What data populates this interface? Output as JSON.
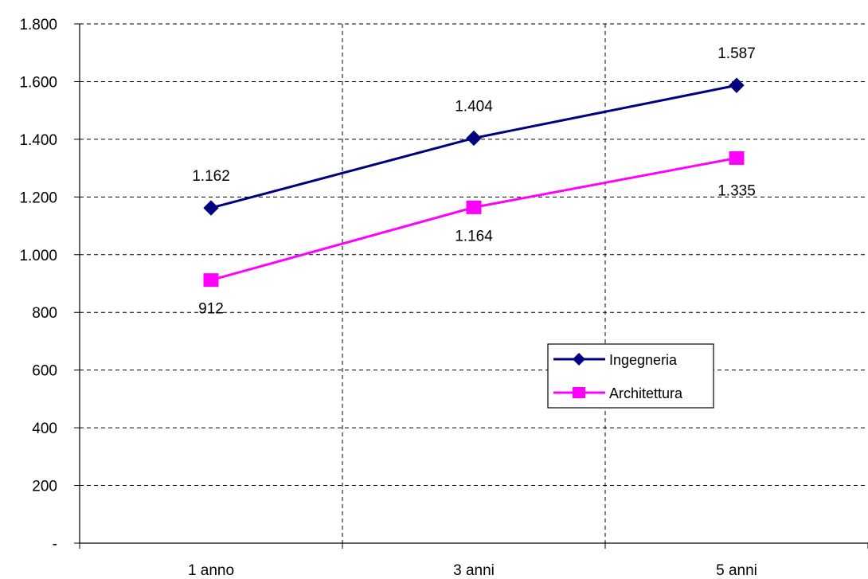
{
  "chart_data": {
    "type": "line",
    "categories": [
      "1 anno",
      "3 anni",
      "5 anni"
    ],
    "series": [
      {
        "name": "Ingegneria",
        "values": [
          1162,
          1404,
          1587
        ],
        "labels": [
          "1.162",
          "1.404",
          "1.587"
        ],
        "color": "#000080",
        "marker": "diamond"
      },
      {
        "name": "Architettura",
        "values": [
          912,
          1164,
          1335
        ],
        "labels": [
          "912",
          "1.164",
          "1.335"
        ],
        "color": "#ff00ff",
        "marker": "square"
      }
    ],
    "ylim": [
      0,
      1800
    ],
    "yticks": [
      0,
      200,
      400,
      600,
      800,
      1000,
      1200,
      1400,
      1600,
      1800
    ],
    "ytick_labels": [
      "-",
      "200",
      "400",
      "600",
      "800",
      "1.000",
      "1.200",
      "1.400",
      "1.600",
      "1.800"
    ],
    "grid": true,
    "legend_position": "center-right",
    "title": "",
    "xlabel": "",
    "ylabel": ""
  }
}
